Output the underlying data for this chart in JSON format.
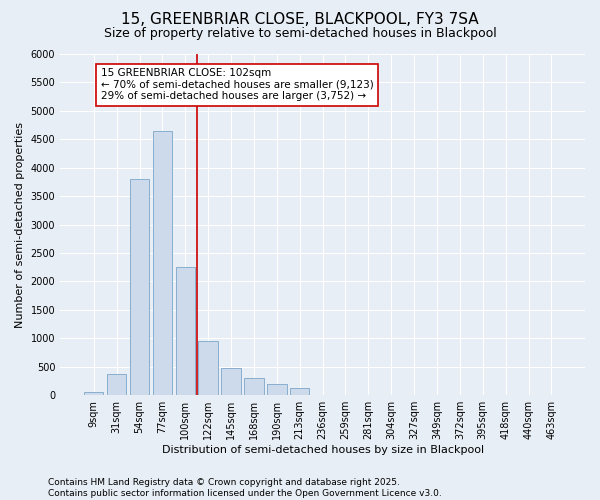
{
  "title": "15, GREENBRIAR CLOSE, BLACKPOOL, FY3 7SA",
  "subtitle": "Size of property relative to semi-detached houses in Blackpool",
  "xlabel": "Distribution of semi-detached houses by size in Blackpool",
  "ylabel": "Number of semi-detached properties",
  "footer": "Contains HM Land Registry data © Crown copyright and database right 2025.\nContains public sector information licensed under the Open Government Licence v3.0.",
  "categories": [
    "9sqm",
    "31sqm",
    "54sqm",
    "77sqm",
    "100sqm",
    "122sqm",
    "145sqm",
    "168sqm",
    "190sqm",
    "213sqm",
    "236sqm",
    "259sqm",
    "281sqm",
    "304sqm",
    "327sqm",
    "349sqm",
    "372sqm",
    "395sqm",
    "418sqm",
    "440sqm",
    "463sqm"
  ],
  "bar_values": [
    50,
    380,
    3800,
    4650,
    2250,
    950,
    480,
    300,
    190,
    130,
    0,
    0,
    0,
    0,
    0,
    0,
    0,
    0,
    0,
    0,
    0
  ],
  "bar_color": "#ccdaeb",
  "bar_edge_color": "#89aece",
  "vline_color": "#cc0000",
  "vline_x": 4.5,
  "annotation_text": "15 GREENBRIAR CLOSE: 102sqm\n← 70% of semi-detached houses are smaller (9,123)\n29% of semi-detached houses are larger (3,752) →",
  "annotation_box_color": "white",
  "annotation_box_edge_color": "#cc0000",
  "ylim": [
    0,
    6000
  ],
  "yticks": [
    0,
    500,
    1000,
    1500,
    2000,
    2500,
    3000,
    3500,
    4000,
    4500,
    5000,
    5500,
    6000
  ],
  "bg_color": "#e8eef5",
  "grid_color": "white",
  "title_fontsize": 11,
  "subtitle_fontsize": 9,
  "axis_label_fontsize": 8,
  "tick_fontsize": 7,
  "annotation_fontsize": 7.5,
  "footer_fontsize": 6.5
}
